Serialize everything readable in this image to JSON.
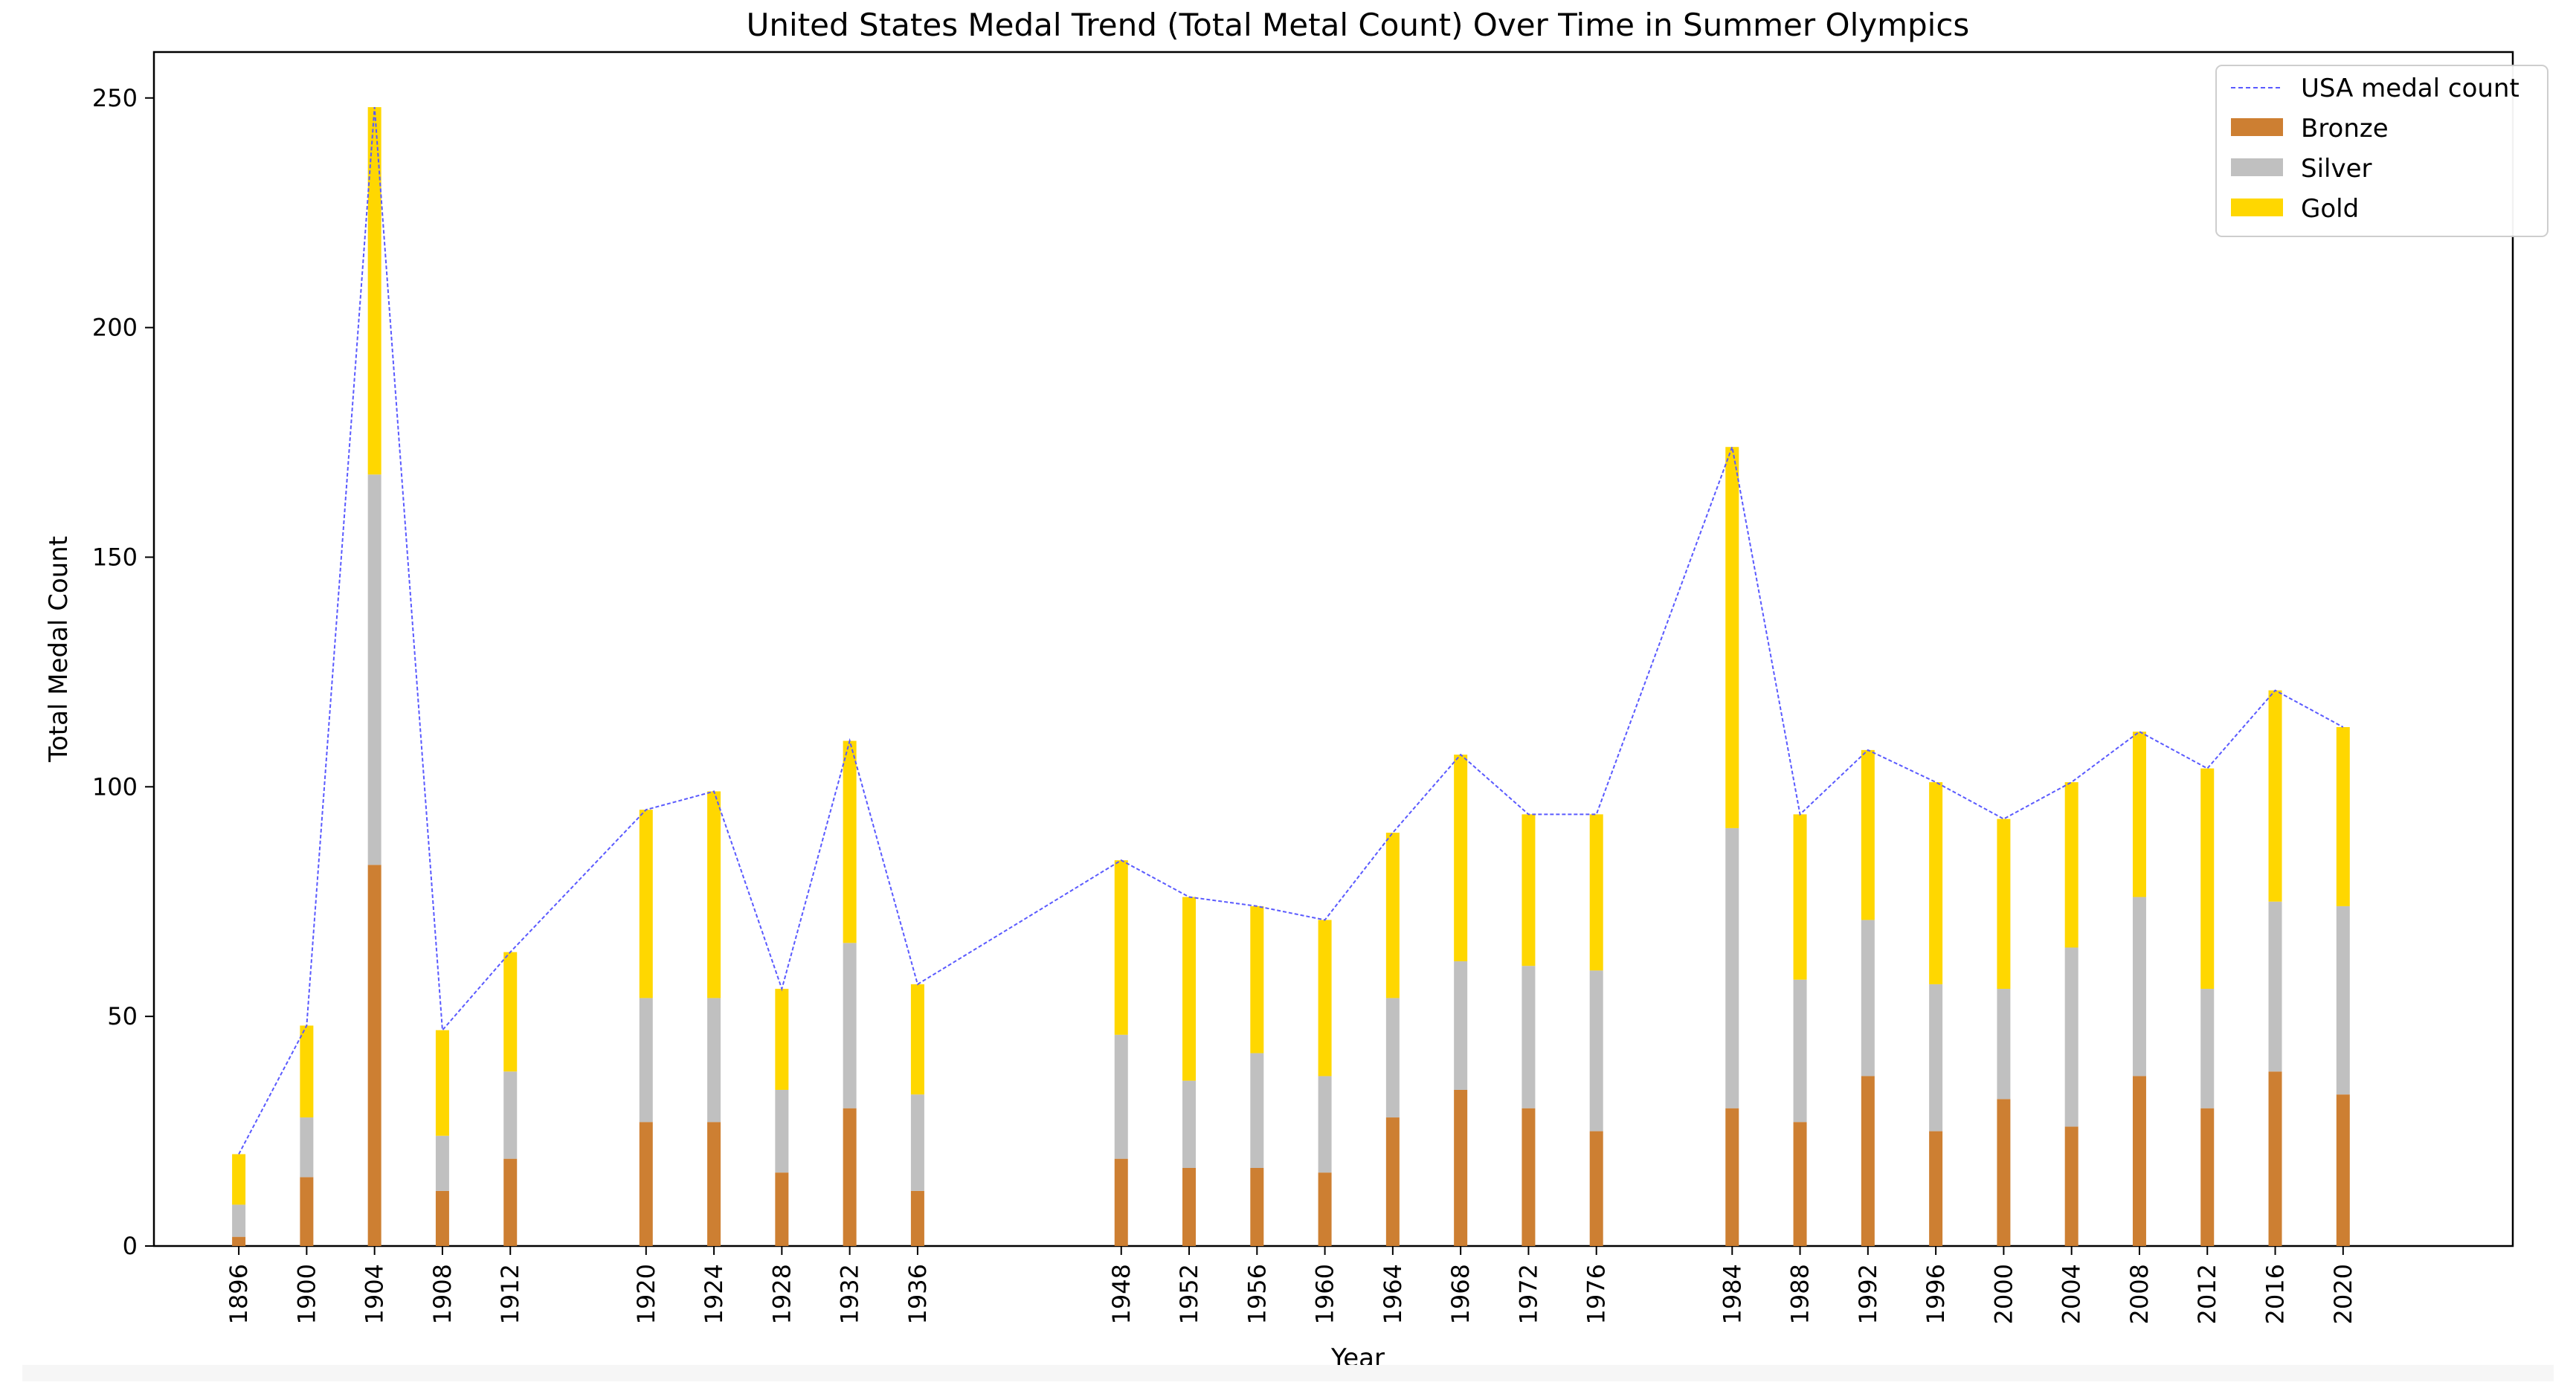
{
  "chart_data": {
    "type": "bar",
    "stacked": true,
    "title": "United States Medal Trend (Total Metal Count) Over Time in Summer Olympics",
    "xlabel": "Year",
    "ylabel": "Total Medal Count",
    "ylim": [
      0,
      260
    ],
    "xlim": [
      1891,
      2030
    ],
    "yticks": [
      0,
      50,
      100,
      150,
      200,
      250
    ],
    "grid": false,
    "legend_position": "top-right",
    "categories": [
      "1896",
      "1900",
      "1904",
      "1908",
      "1912",
      "1920",
      "1924",
      "1928",
      "1932",
      "1936",
      "1948",
      "1952",
      "1956",
      "1960",
      "1964",
      "1968",
      "1972",
      "1976",
      "1984",
      "1988",
      "1992",
      "1996",
      "2000",
      "2004",
      "2008",
      "2012",
      "2016",
      "2020"
    ],
    "series": [
      {
        "name": "Bronze",
        "color": "#cd7f32",
        "values": [
          2,
          15,
          83,
          12,
          19,
          27,
          27,
          16,
          30,
          12,
          19,
          17,
          17,
          16,
          28,
          34,
          30,
          25,
          30,
          27,
          37,
          25,
          32,
          26,
          37,
          30,
          38,
          33
        ]
      },
      {
        "name": "Silver",
        "color": "#c0c0c0",
        "values": [
          7,
          13,
          85,
          12,
          19,
          27,
          27,
          18,
          36,
          21,
          27,
          19,
          25,
          21,
          26,
          28,
          31,
          35,
          61,
          31,
          34,
          32,
          24,
          39,
          39,
          26,
          37,
          41
        ]
      },
      {
        "name": "Gold",
        "color": "#ffd700",
        "values": [
          11,
          20,
          80,
          23,
          26,
          41,
          45,
          22,
          44,
          24,
          38,
          40,
          32,
          34,
          36,
          45,
          33,
          34,
          83,
          36,
          37,
          44,
          37,
          36,
          36,
          48,
          46,
          39
        ]
      }
    ],
    "line": {
      "name": "USA medal count",
      "color": "#5a5aff",
      "values": [
        20,
        48,
        248,
        47,
        64,
        95,
        99,
        56,
        110,
        57,
        84,
        76,
        74,
        71,
        90,
        107,
        94,
        94,
        174,
        94,
        108,
        101,
        93,
        101,
        112,
        104,
        121,
        113
      ]
    }
  }
}
